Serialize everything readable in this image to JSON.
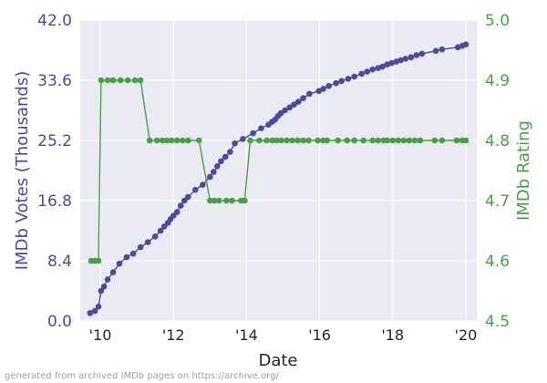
{
  "chart_data": {
    "type": "line",
    "x_axis": {
      "label": "Date",
      "range": [
        2009.45,
        2020.3
      ],
      "ticks": [
        2010,
        2012,
        2014,
        2016,
        2018,
        2020
      ],
      "tick_labels": [
        "'10",
        "'12",
        "'14",
        "'16",
        "'18",
        "'20"
      ]
    },
    "y_left": {
      "label": "IMDb Votes (Thousands)",
      "range": [
        0,
        42
      ],
      "ticks": [
        0,
        8.4,
        16.8,
        25.2,
        33.6,
        42
      ],
      "tick_labels": [
        "0.0",
        "8.4",
        "16.8",
        "25.2",
        "33.6",
        "42.0"
      ],
      "color": "#4b4b97"
    },
    "y_right": {
      "label": "IMDb Rating",
      "range": [
        4.5,
        5.0
      ],
      "ticks": [
        4.5,
        4.6,
        4.7,
        4.8,
        4.9,
        5.0
      ],
      "tick_labels": [
        "4.5",
        "4.6",
        "4.7",
        "4.8",
        "4.9",
        "5.0"
      ],
      "color": "#4a9e4a"
    },
    "grid": true,
    "background": "#eaeaf2",
    "series": [
      {
        "axis": "left",
        "color": "#4b4b97",
        "x": [
          2009.72,
          2009.85,
          2009.95,
          2010.02,
          2010.1,
          2010.2,
          2010.35,
          2010.52,
          2010.72,
          2010.9,
          2011.1,
          2011.3,
          2011.5,
          2011.65,
          2011.75,
          2011.85,
          2011.92,
          2012.0,
          2012.1,
          2012.2,
          2012.3,
          2012.4,
          2012.6,
          2012.8,
          2013.0,
          2013.1,
          2013.2,
          2013.3,
          2013.42,
          2013.55,
          2013.68,
          2013.9,
          2014.18,
          2014.4,
          2014.6,
          2014.7,
          2014.78,
          2014.86,
          2014.94,
          2015.05,
          2015.18,
          2015.3,
          2015.42,
          2015.55,
          2015.72,
          2015.98,
          2016.1,
          2016.25,
          2016.45,
          2016.6,
          2016.78,
          2016.95,
          2017.15,
          2017.3,
          2017.45,
          2017.6,
          2017.72,
          2017.85,
          2017.97,
          2018.1,
          2018.22,
          2018.35,
          2018.5,
          2018.65,
          2018.8,
          2019.18,
          2019.35,
          2019.78,
          2019.9,
          2020.0
        ],
        "y": [
          1.1,
          1.4,
          2.0,
          4.2,
          4.8,
          5.8,
          6.8,
          8.0,
          8.9,
          9.4,
          10.3,
          11.0,
          11.8,
          12.6,
          13.2,
          13.7,
          14.2,
          14.7,
          15.2,
          16.1,
          16.8,
          17.3,
          18.3,
          19.0,
          20.1,
          20.8,
          21.6,
          22.3,
          22.9,
          23.6,
          24.8,
          25.4,
          26.2,
          26.9,
          27.4,
          27.8,
          28.1,
          28.6,
          29.0,
          29.4,
          29.8,
          30.2,
          30.6,
          31.1,
          31.7,
          32.1,
          32.4,
          32.8,
          33.2,
          33.5,
          33.8,
          34.1,
          34.5,
          34.8,
          35.1,
          35.3,
          35.5,
          35.8,
          36.0,
          36.2,
          36.4,
          36.6,
          36.8,
          37.1,
          37.3,
          37.7,
          37.9,
          38.2,
          38.4,
          38.6
        ]
      },
      {
        "axis": "right",
        "color": "#4a9e4a",
        "x": [
          2009.75,
          2009.85,
          2009.95,
          2010.02,
          2010.2,
          2010.35,
          2010.55,
          2010.75,
          2010.95,
          2011.1,
          2011.35,
          2011.55,
          2011.7,
          2011.82,
          2011.95,
          2012.1,
          2012.25,
          2012.4,
          2012.7,
          2013.0,
          2013.12,
          2013.25,
          2013.45,
          2013.6,
          2013.85,
          2013.95,
          2014.1,
          2014.35,
          2014.55,
          2014.7,
          2014.82,
          2014.95,
          2015.1,
          2015.25,
          2015.4,
          2015.55,
          2015.7,
          2015.95,
          2016.1,
          2016.2,
          2016.5,
          2016.75,
          2016.95,
          2017.2,
          2017.45,
          2017.6,
          2017.75,
          2017.85,
          2018.0,
          2018.15,
          2018.3,
          2018.45,
          2018.6,
          2018.75,
          2019.15,
          2019.35,
          2019.75,
          2019.9,
          2020.0
        ],
        "y": [
          4.6,
          4.6,
          4.6,
          4.9,
          4.9,
          4.9,
          4.9,
          4.9,
          4.9,
          4.9,
          4.8,
          4.8,
          4.8,
          4.8,
          4.8,
          4.8,
          4.8,
          4.8,
          4.8,
          4.7,
          4.7,
          4.7,
          4.7,
          4.7,
          4.7,
          4.7,
          4.8,
          4.8,
          4.8,
          4.8,
          4.8,
          4.8,
          4.8,
          4.8,
          4.8,
          4.8,
          4.8,
          4.8,
          4.8,
          4.8,
          4.8,
          4.8,
          4.8,
          4.8,
          4.8,
          4.8,
          4.8,
          4.8,
          4.8,
          4.8,
          4.8,
          4.8,
          4.8,
          4.8,
          4.8,
          4.8,
          4.8,
          4.8,
          4.8
        ]
      }
    ]
  },
  "footnote": "generated from archived IMDb pages on https://archive.org/"
}
